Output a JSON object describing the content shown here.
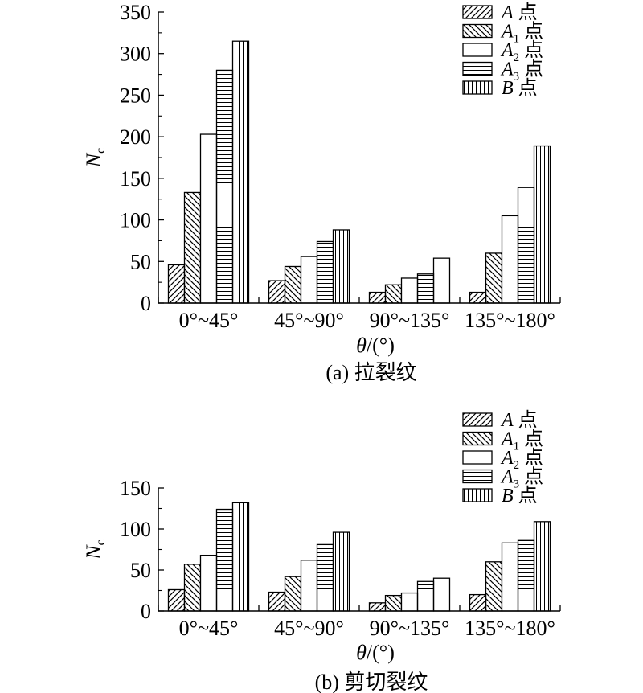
{
  "chart_data": [
    {
      "type": "bar",
      "caption": "(a) 拉裂纹",
      "xlabel": "θ/(°)",
      "ylabel": "Nc",
      "ylim": [
        0,
        350
      ],
      "yticks": [
        0,
        50,
        100,
        150,
        200,
        250,
        300,
        350
      ],
      "categories": [
        "0°~45°",
        "45°~90°",
        "90°~135°",
        "135°~180°"
      ],
      "series": [
        {
          "name": "A 点",
          "pattern": "diag-fwd",
          "values": [
            46,
            27,
            13,
            13
          ]
        },
        {
          "name": "A1 点",
          "pattern": "diag-back",
          "values": [
            133,
            44,
            22,
            60
          ]
        },
        {
          "name": "A2 点",
          "pattern": "empty",
          "values": [
            203,
            56,
            30,
            105
          ]
        },
        {
          "name": "A3 点",
          "pattern": "horizontal",
          "values": [
            280,
            74,
            35,
            139
          ]
        },
        {
          "name": "B 点",
          "pattern": "vertical",
          "values": [
            315,
            88,
            54,
            189
          ]
        }
      ]
    },
    {
      "type": "bar",
      "caption": "(b) 剪切裂纹",
      "xlabel": "θ/(°)",
      "ylabel": "Nc",
      "ylim": [
        0,
        150
      ],
      "yticks": [
        0,
        50,
        100,
        150
      ],
      "categories": [
        "0°~45°",
        "45°~90°",
        "90°~135°",
        "135°~180°"
      ],
      "series": [
        {
          "name": "A 点",
          "pattern": "diag-fwd",
          "values": [
            26,
            23,
            10,
            20
          ]
        },
        {
          "name": "A1 点",
          "pattern": "diag-back",
          "values": [
            57,
            42,
            19,
            60
          ]
        },
        {
          "name": "A2 点",
          "pattern": "empty",
          "values": [
            68,
            62,
            22,
            83
          ]
        },
        {
          "name": "A3 点",
          "pattern": "horizontal",
          "values": [
            124,
            81,
            36,
            86
          ]
        },
        {
          "name": "B 点",
          "pattern": "vertical",
          "values": [
            132,
            96,
            40,
            109
          ]
        }
      ]
    }
  ]
}
